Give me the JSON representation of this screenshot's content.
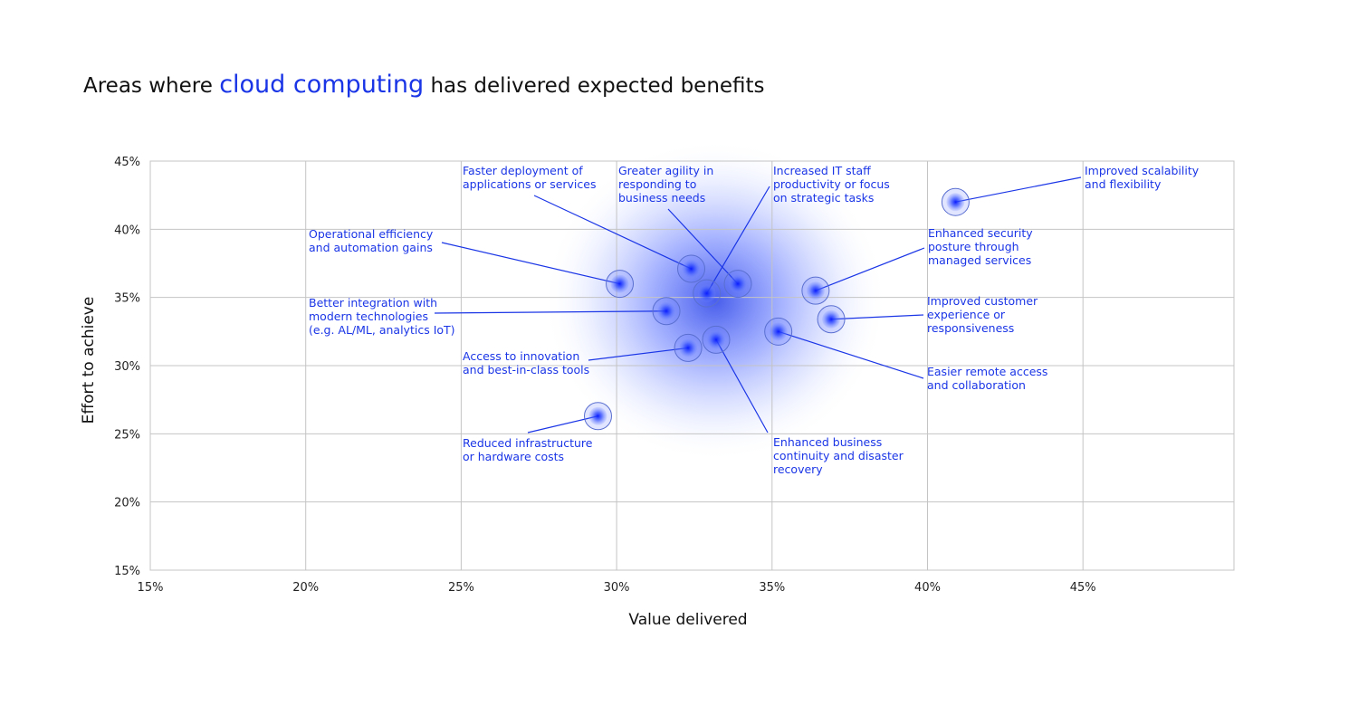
{
  "title": {
    "prefix": "Areas where ",
    "highlight": "cloud computing",
    "suffix": " has delivered expected benefits"
  },
  "colors": {
    "accent": "#1a35e6",
    "grid": "#c4c4c4",
    "text": "#111111"
  },
  "chart_data": {
    "type": "scatter",
    "xlabel": "Value delivered",
    "ylabel": "Effort to achieve",
    "xlim": [
      15,
      50
    ],
    "ylim": [
      15,
      45
    ],
    "xticks": [
      15,
      20,
      25,
      30,
      35,
      40,
      45
    ],
    "yticks": [
      15,
      20,
      25,
      30,
      35,
      40,
      45
    ],
    "xtick_labels": [
      "15%",
      "20%",
      "25%",
      "30%",
      "35%",
      "40%",
      "45%"
    ],
    "ytick_labels": [
      "15%",
      "20%",
      "25%",
      "30%",
      "35%",
      "40%",
      "45%"
    ],
    "grid": true,
    "points": [
      {
        "label": [
          "Faster deployment of",
          "applications or services"
        ],
        "x": 32.4,
        "y": 37.1
      },
      {
        "label": [
          "Greater agility in",
          "responding to",
          "business needs"
        ],
        "x": 33.9,
        "y": 36.0
      },
      {
        "label": [
          "Increased IT staff",
          "productivity or focus",
          "on strategic tasks"
        ],
        "x": 32.9,
        "y": 35.3
      },
      {
        "label": [
          "Improved scalability",
          "and flexibility"
        ],
        "x": 40.9,
        "y": 42.0
      },
      {
        "label": [
          "Operational efficiency",
          "and automation gains"
        ],
        "x": 30.1,
        "y": 36.0
      },
      {
        "label": [
          "Enhanced security",
          "posture through",
          "managed services"
        ],
        "x": 36.4,
        "y": 35.5
      },
      {
        "label": [
          "Better integration with",
          "modern technologies",
          "(e.g. AL/ML, analytics IoT)"
        ],
        "x": 31.6,
        "y": 34.0
      },
      {
        "label": [
          "Improved customer",
          "experience or",
          "responsiveness"
        ],
        "x": 36.9,
        "y": 33.4
      },
      {
        "label": [
          "Access to innovation",
          "and best-in-class tools"
        ],
        "x": 32.3,
        "y": 31.3
      },
      {
        "label": [
          "Easier remote access",
          "and collaboration"
        ],
        "x": 35.2,
        "y": 32.5
      },
      {
        "label": [
          "Enhanced business",
          "continuity and disaster",
          "recovery"
        ],
        "x": 33.2,
        "y": 31.9
      },
      {
        "label": [
          "Reduced infrastructure",
          "or hardware costs"
        ],
        "x": 29.4,
        "y": 26.3
      }
    ]
  }
}
